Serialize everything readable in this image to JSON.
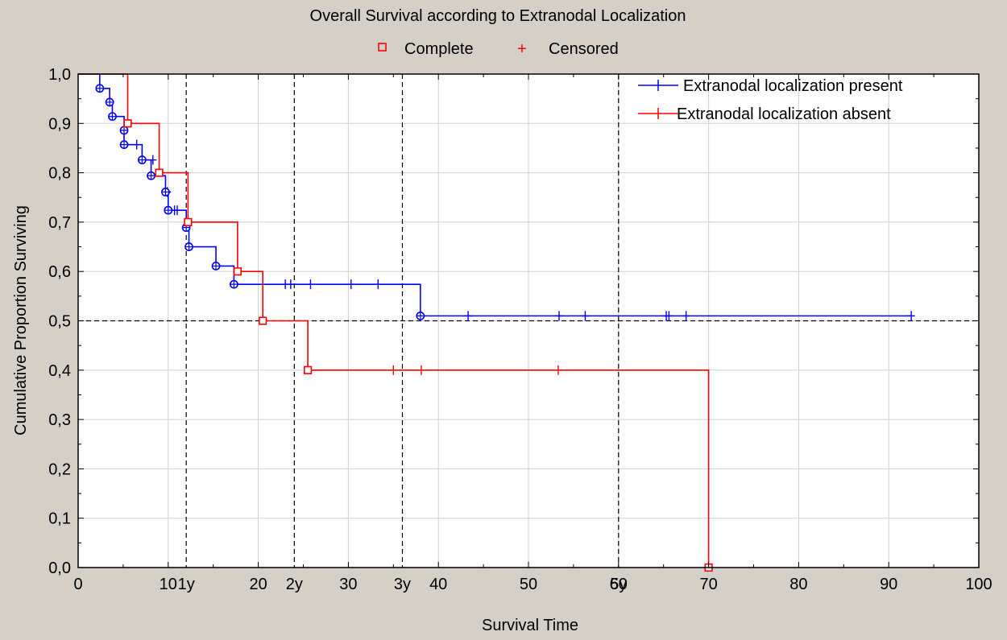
{
  "chart_data": {
    "type": "line",
    "title": "Overall Survival according to Extranodal Localization",
    "xlabel": "Survival Time",
    "ylabel": "Cumulative Proportion Surviving",
    "xlim": [
      0,
      100
    ],
    "ylim": [
      0,
      1
    ],
    "x_ticks": [
      {
        "value": 0,
        "label": "0"
      },
      {
        "value": 10,
        "label": "10"
      },
      {
        "value": 20,
        "label": "20"
      },
      {
        "value": 30,
        "label": "30"
      },
      {
        "value": 40,
        "label": "40"
      },
      {
        "value": 50,
        "label": "50"
      },
      {
        "value": 60,
        "label": "60"
      },
      {
        "value": 70,
        "label": "70"
      },
      {
        "value": 80,
        "label": "80"
      },
      {
        "value": 90,
        "label": "90"
      },
      {
        "value": 100,
        "label": "100"
      }
    ],
    "x_extra_ticks": [
      {
        "value": 12,
        "label": "1y"
      },
      {
        "value": 24,
        "label": "2y"
      },
      {
        "value": 36,
        "label": "3y"
      },
      {
        "value": 60,
        "label": "5y"
      }
    ],
    "y_ticks": [
      {
        "value": 0,
        "label": "0,0"
      },
      {
        "value": 0.1,
        "label": "0,1"
      },
      {
        "value": 0.2,
        "label": "0,2"
      },
      {
        "value": 0.3,
        "label": "0,3"
      },
      {
        "value": 0.4,
        "label": "0,4"
      },
      {
        "value": 0.5,
        "label": "0,5"
      },
      {
        "value": 0.6,
        "label": "0,6"
      },
      {
        "value": 0.7,
        "label": "0,7"
      },
      {
        "value": 0.8,
        "label": "0,8"
      },
      {
        "value": 0.9,
        "label": "0,9"
      },
      {
        "value": 1.0,
        "label": "1,0"
      }
    ],
    "reference_lines": {
      "vertical_x": [
        12,
        24,
        36,
        60
      ],
      "horizontal_y": [
        0.5
      ]
    },
    "grid": true,
    "marker_legend": [
      {
        "label": "Complete",
        "marker": "square"
      },
      {
        "label": "Censored",
        "marker": "plus"
      }
    ],
    "legend_position": "top-right",
    "series": [
      {
        "name": "Extranodal localization present",
        "color": "#0000ff",
        "complete_marker": "circle",
        "steps": [
          [
            0,
            1.0
          ],
          [
            2.4,
            0.971
          ],
          [
            3.5,
            0.943
          ],
          [
            3.8,
            0.914
          ],
          [
            5.1,
            0.886
          ],
          [
            5.1,
            0.857
          ],
          [
            7.1,
            0.826
          ],
          [
            8.1,
            0.794
          ],
          [
            9.7,
            0.761
          ],
          [
            10.0,
            0.724
          ],
          [
            12.0,
            0.689
          ],
          [
            12.3,
            0.65
          ],
          [
            15.3,
            0.611
          ],
          [
            17.3,
            0.574
          ],
          [
            38.0,
            0.51
          ],
          [
            92.5,
            0.51
          ]
        ],
        "complete": [
          [
            2.4,
            0.971
          ],
          [
            3.5,
            0.943
          ],
          [
            3.8,
            0.914
          ],
          [
            5.1,
            0.886
          ],
          [
            5.1,
            0.857
          ],
          [
            7.1,
            0.826
          ],
          [
            8.1,
            0.794
          ],
          [
            9.7,
            0.761
          ],
          [
            10.0,
            0.724
          ],
          [
            12.0,
            0.689
          ],
          [
            12.3,
            0.65
          ],
          [
            15.3,
            0.611
          ],
          [
            17.3,
            0.574
          ],
          [
            38.0,
            0.51
          ]
        ],
        "censored": [
          [
            6.5,
            0.857
          ],
          [
            8.3,
            0.826
          ],
          [
            9.9,
            0.761
          ],
          [
            10.7,
            0.724
          ],
          [
            11.0,
            0.724
          ],
          [
            23.0,
            0.574
          ],
          [
            23.6,
            0.574
          ],
          [
            25.8,
            0.574
          ],
          [
            30.3,
            0.574
          ],
          [
            33.3,
            0.574
          ],
          [
            43.3,
            0.51
          ],
          [
            53.4,
            0.51
          ],
          [
            56.3,
            0.51
          ],
          [
            65.3,
            0.51
          ],
          [
            65.6,
            0.51
          ],
          [
            67.5,
            0.51
          ],
          [
            92.5,
            0.51
          ]
        ]
      },
      {
        "name": "Extranodal localization absent",
        "color": "#ff0000",
        "complete_marker": "square",
        "steps": [
          [
            0,
            1.0
          ],
          [
            5.5,
            0.9
          ],
          [
            9.0,
            0.8
          ],
          [
            12.2,
            0.7
          ],
          [
            17.7,
            0.6
          ],
          [
            20.5,
            0.5
          ],
          [
            25.5,
            0.4
          ],
          [
            70.0,
            0.0
          ]
        ],
        "complete": [
          [
            5.5,
            0.9
          ],
          [
            9.0,
            0.8
          ],
          [
            12.2,
            0.7
          ],
          [
            17.7,
            0.6
          ],
          [
            20.5,
            0.5
          ],
          [
            25.5,
            0.4
          ],
          [
            70.0,
            0.0
          ]
        ],
        "censored": [
          [
            35.0,
            0.4
          ],
          [
            38.1,
            0.4
          ],
          [
            53.3,
            0.4
          ]
        ]
      }
    ]
  }
}
